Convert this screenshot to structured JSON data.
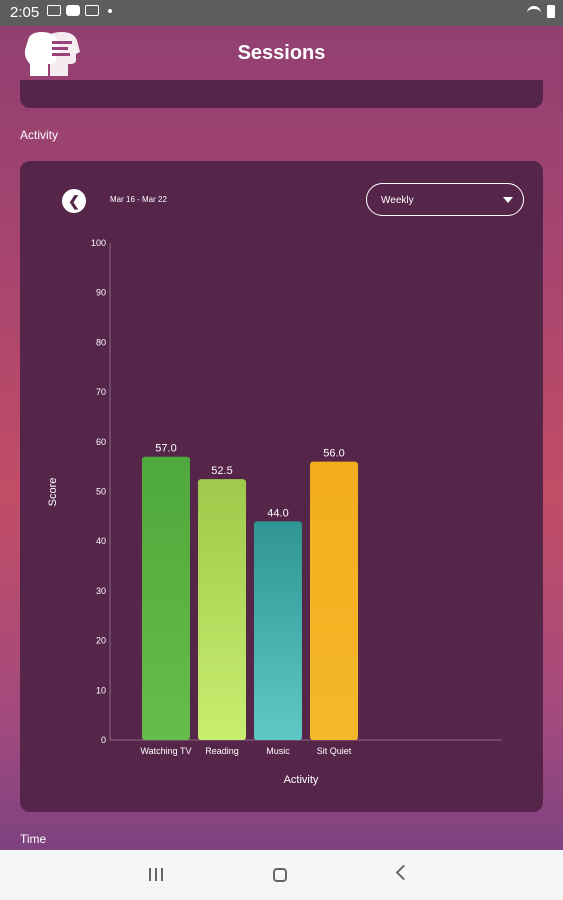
{
  "status_bar": {
    "time": "2:05"
  },
  "header": {
    "title": "Sessions"
  },
  "sections": {
    "activity": "Activity",
    "time": "Time"
  },
  "chart_card": {
    "date_range": "Mar 16 - Mar 22",
    "period_select": {
      "value": "Weekly"
    }
  },
  "colors": {
    "card": "#55264a",
    "watching_tv": "#5aac3f",
    "reading": "#b5dd5a",
    "music": "#3aa5a0",
    "sit_quiet": "#f3b21f"
  },
  "chart_data": {
    "type": "bar",
    "categories": [
      "Watching TV",
      "Reading",
      "Music",
      "Sit Quiet"
    ],
    "values": [
      57.0,
      52.5,
      44.0,
      56.0
    ],
    "value_labels": [
      "57.0",
      "52.5",
      "44.0",
      "56.0"
    ],
    "xlabel": "Activity",
    "ylabel": "Score",
    "ylim": [
      0,
      100
    ],
    "yticks": [
      "0",
      "10",
      "20",
      "30",
      "40",
      "50",
      "60",
      "70",
      "80",
      "90",
      "100"
    ],
    "grid": false,
    "legend": "none"
  }
}
